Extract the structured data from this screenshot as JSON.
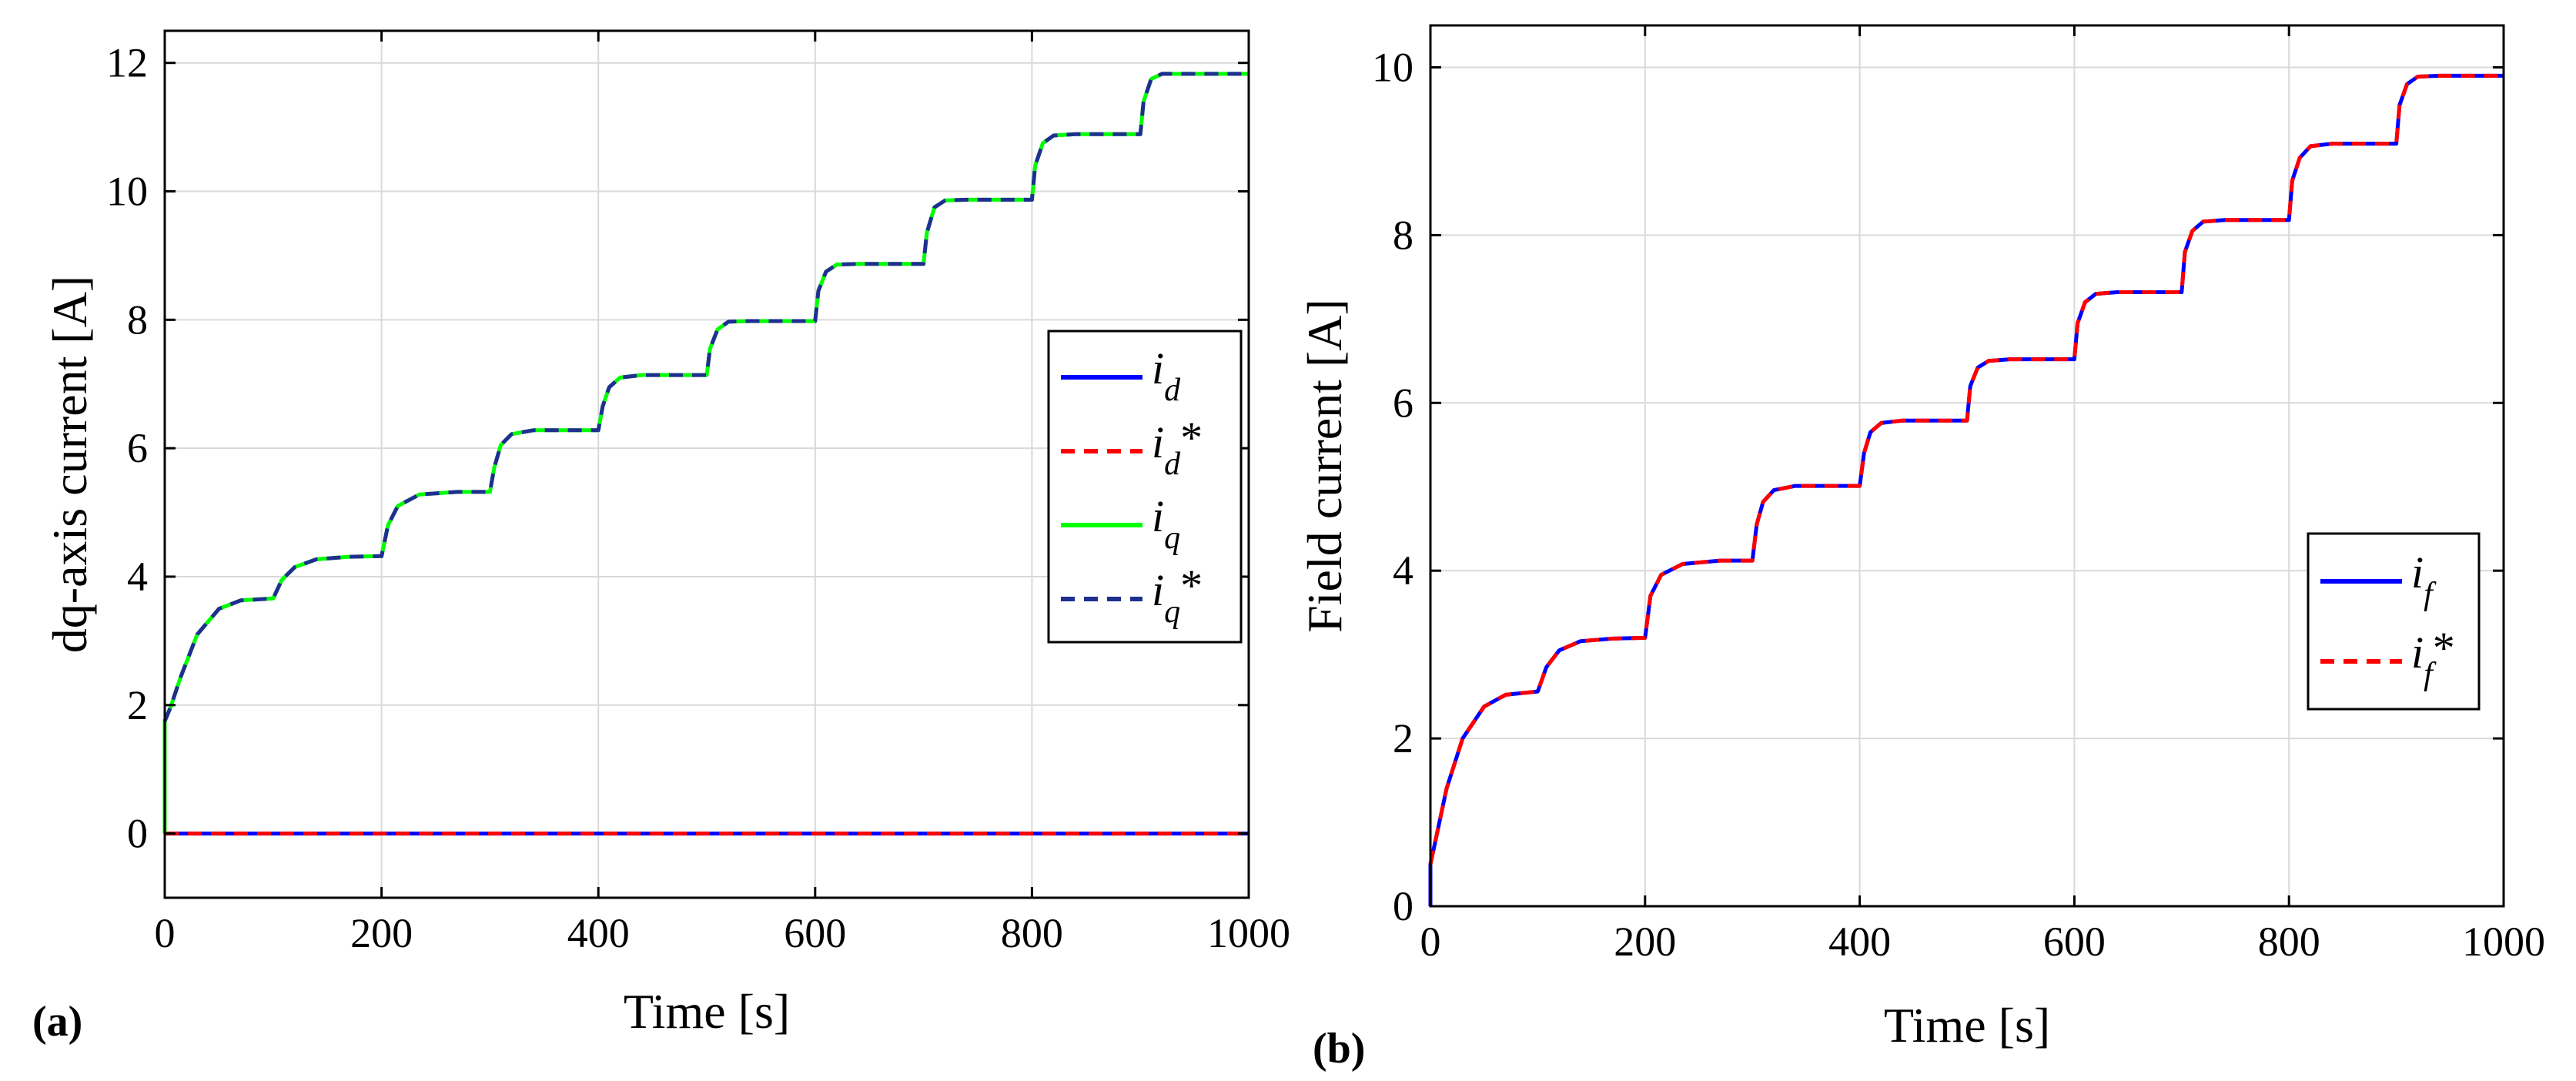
{
  "colors": {
    "id": "#0000ff",
    "id_ref": "#ff0000",
    "iq": "#00ff00",
    "iq_ref": "#1f2f8f",
    "if": "#0000ff",
    "if_ref": "#ff0000",
    "grid": "#d9d9d9",
    "axis": "#000000"
  },
  "chart_data": [
    {
      "type": "line",
      "panel_label": "(a)",
      "xlabel": "Time [s]",
      "ylabel": "dq-axis current [A]",
      "xlim": [
        0,
        1000
      ],
      "ylim": [
        -1,
        12.5
      ],
      "xticks": [
        0,
        200,
        400,
        600,
        800,
        1000
      ],
      "xtick_labels": [
        "0",
        "200",
        "400",
        "600",
        "800",
        "1000"
      ],
      "yticks": [
        0,
        2,
        4,
        6,
        8,
        10,
        12
      ],
      "ytick_labels": [
        "0",
        "2",
        "4",
        "6",
        "8",
        "10",
        "12"
      ],
      "grid": true,
      "legend_position": "right",
      "legend_items": [
        {
          "sym": "i",
          "sub": "d",
          "star": ""
        },
        {
          "sym": "i",
          "sub": "d",
          "star": "*"
        },
        {
          "sym": "i",
          "sub": "q",
          "star": ""
        },
        {
          "sym": "i",
          "sub": "q",
          "star": "*"
        }
      ],
      "series": [
        {
          "name": "i_d",
          "style": "solid",
          "x": [
            0,
            1000
          ],
          "y": [
            0,
            0
          ]
        },
        {
          "name": "i_d*",
          "style": "dashed",
          "x": [
            0,
            1000
          ],
          "y": [
            0,
            0
          ]
        },
        {
          "name": "i_q",
          "style": "solid",
          "x": [
            0,
            0,
            5,
            15,
            30,
            50,
            70,
            100,
            108,
            120,
            140,
            170,
            200,
            206,
            215,
            235,
            270,
            300,
            304,
            310,
            320,
            340,
            400,
            404,
            410,
            420,
            440,
            500,
            503,
            510,
            520,
            540,
            600,
            603,
            610,
            620,
            640,
            700,
            703,
            710,
            720,
            740,
            800,
            803,
            810,
            820,
            840,
            900,
            903,
            910,
            920,
            940,
            1000
          ],
          "y": [
            0,
            1.75,
            1.95,
            2.45,
            3.1,
            3.5,
            3.63,
            3.66,
            3.95,
            4.15,
            4.27,
            4.31,
            4.32,
            4.8,
            5.1,
            5.28,
            5.32,
            5.32,
            5.7,
            6.05,
            6.22,
            6.28,
            6.28,
            6.65,
            6.95,
            7.1,
            7.14,
            7.14,
            7.55,
            7.85,
            7.97,
            7.98,
            7.98,
            8.45,
            8.75,
            8.86,
            8.87,
            8.87,
            9.35,
            9.75,
            9.86,
            9.87,
            9.87,
            10.4,
            10.75,
            10.87,
            10.89,
            10.89,
            11.4,
            11.75,
            11.83,
            11.83,
            11.83
          ]
        },
        {
          "name": "i_q*",
          "style": "dashed",
          "x": [
            0,
            5,
            15,
            30,
            50,
            70,
            100,
            108,
            120,
            140,
            170,
            200,
            206,
            215,
            235,
            270,
            300,
            304,
            310,
            320,
            340,
            400,
            404,
            410,
            420,
            440,
            500,
            503,
            510,
            520,
            540,
            600,
            603,
            610,
            620,
            640,
            700,
            703,
            710,
            720,
            740,
            800,
            803,
            810,
            820,
            840,
            900,
            903,
            910,
            920,
            940,
            1000
          ],
          "y": [
            1.75,
            1.95,
            2.45,
            3.1,
            3.5,
            3.63,
            3.66,
            3.95,
            4.15,
            4.27,
            4.31,
            4.32,
            4.8,
            5.1,
            5.28,
            5.32,
            5.32,
            5.7,
            6.05,
            6.22,
            6.28,
            6.28,
            6.65,
            6.95,
            7.1,
            7.14,
            7.14,
            7.55,
            7.85,
            7.97,
            7.98,
            7.98,
            8.45,
            8.75,
            8.86,
            8.87,
            8.87,
            9.35,
            9.75,
            9.86,
            9.87,
            9.87,
            10.4,
            10.75,
            10.87,
            10.89,
            10.89,
            11.4,
            11.75,
            11.83,
            11.83,
            11.83
          ]
        }
      ]
    },
    {
      "type": "line",
      "panel_label": "(b)",
      "xlabel": "Time [s]",
      "ylabel": "Field current [A]",
      "xlim": [
        0,
        1000
      ],
      "ylim": [
        0,
        10.5
      ],
      "xticks": [
        0,
        200,
        400,
        600,
        800,
        1000
      ],
      "xtick_labels": [
        "0",
        "200",
        "400",
        "600",
        "800",
        "1000"
      ],
      "yticks": [
        0,
        2,
        4,
        6,
        8,
        10
      ],
      "ytick_labels": [
        "0",
        "2",
        "4",
        "6",
        "8",
        "10"
      ],
      "grid": true,
      "legend_position": "right",
      "legend_items": [
        {
          "sym": "i",
          "sub": "f",
          "star": ""
        },
        {
          "sym": "i",
          "sub": "f",
          "star": "*"
        }
      ],
      "series": [
        {
          "name": "i_f",
          "style": "solid",
          "x": [
            0,
            0,
            5,
            15,
            30,
            50,
            70,
            100,
            108,
            120,
            140,
            170,
            200,
            205,
            215,
            235,
            270,
            300,
            304,
            310,
            320,
            340,
            400,
            404,
            410,
            420,
            440,
            500,
            503,
            510,
            520,
            540,
            600,
            603,
            610,
            620,
            640,
            700,
            703,
            710,
            720,
            740,
            800,
            803,
            810,
            820,
            840,
            900,
            903,
            910,
            920,
            940,
            1000
          ],
          "y": [
            0,
            0.5,
            0.8,
            1.4,
            2.0,
            2.38,
            2.52,
            2.56,
            2.85,
            3.05,
            3.16,
            3.19,
            3.2,
            3.7,
            3.95,
            4.08,
            4.12,
            4.12,
            4.55,
            4.82,
            4.96,
            5.01,
            5.01,
            5.4,
            5.65,
            5.76,
            5.79,
            5.79,
            6.2,
            6.42,
            6.5,
            6.52,
            6.52,
            6.95,
            7.2,
            7.3,
            7.32,
            7.32,
            7.8,
            8.05,
            8.16,
            8.18,
            8.18,
            8.65,
            8.92,
            9.06,
            9.09,
            9.09,
            9.55,
            9.8,
            9.89,
            9.9,
            9.9
          ]
        },
        {
          "name": "i_f*",
          "style": "dashed",
          "x": [
            0,
            5,
            15,
            30,
            50,
            70,
            100,
            108,
            120,
            140,
            170,
            200,
            205,
            215,
            235,
            270,
            300,
            304,
            310,
            320,
            340,
            400,
            404,
            410,
            420,
            440,
            500,
            503,
            510,
            520,
            540,
            600,
            603,
            610,
            620,
            640,
            700,
            703,
            710,
            720,
            740,
            800,
            803,
            810,
            820,
            840,
            900,
            903,
            910,
            920,
            940,
            1000
          ],
          "y": [
            0.5,
            0.8,
            1.4,
            2.0,
            2.38,
            2.52,
            2.56,
            2.85,
            3.05,
            3.16,
            3.19,
            3.2,
            3.7,
            3.95,
            4.08,
            4.12,
            4.12,
            4.55,
            4.82,
            4.96,
            5.01,
            5.01,
            5.4,
            5.65,
            5.76,
            5.79,
            5.79,
            6.2,
            6.42,
            6.5,
            6.52,
            6.52,
            6.95,
            7.2,
            7.3,
            7.32,
            7.32,
            7.8,
            8.05,
            8.16,
            8.18,
            8.18,
            8.65,
            8.92,
            9.06,
            9.09,
            9.09,
            9.55,
            9.8,
            9.89,
            9.9,
            9.9
          ]
        }
      ]
    }
  ]
}
